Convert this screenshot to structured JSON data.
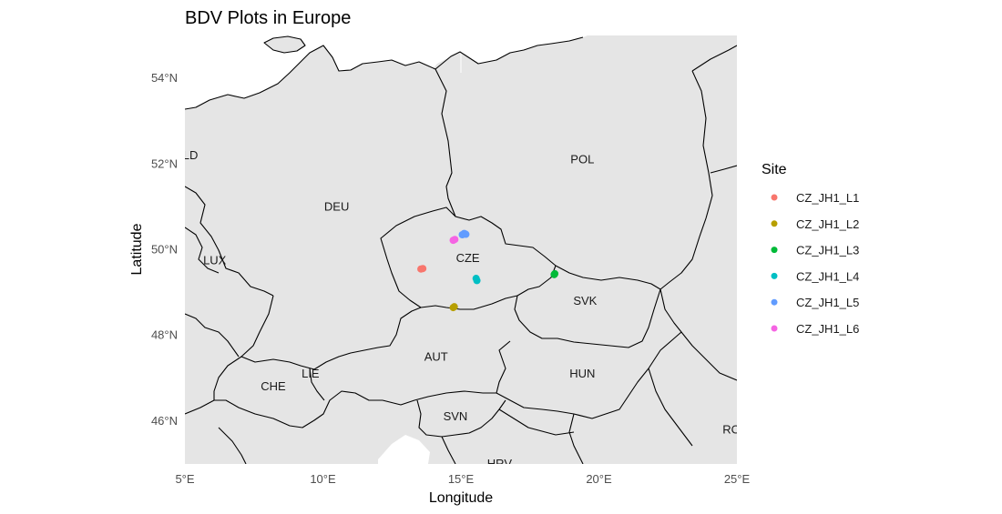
{
  "chart_data": {
    "type": "scatter",
    "title": "BDV Plots in Europe",
    "xlabel": "Longitude",
    "ylabel": "Latitude",
    "xlim": [
      5,
      25
    ],
    "ylim": [
      45,
      55
    ],
    "x_ticks": [
      {
        "value": 5,
        "label": "5°E"
      },
      {
        "value": 10,
        "label": "10°E"
      },
      {
        "value": 15,
        "label": "15°E"
      },
      {
        "value": 20,
        "label": "20°E"
      },
      {
        "value": 25,
        "label": "25°E"
      }
    ],
    "y_ticks": [
      {
        "value": 46,
        "label": "46°N"
      },
      {
        "value": 48,
        "label": "48°N"
      },
      {
        "value": 50,
        "label": "50°N"
      },
      {
        "value": 52,
        "label": "52°N"
      },
      {
        "value": 54,
        "label": "54°N"
      }
    ],
    "legend_title": "Site",
    "legend_position": "right",
    "series": [
      {
        "name": "CZ_JH1_L1",
        "color": "#F8766D",
        "points": [
          {
            "lon": 13.55,
            "lat": 49.55
          },
          {
            "lon": 13.62,
            "lat": 49.56
          }
        ]
      },
      {
        "name": "CZ_JH1_L2",
        "color": "#B79F00",
        "points": [
          {
            "lon": 14.72,
            "lat": 48.65
          },
          {
            "lon": 14.76,
            "lat": 48.67
          }
        ]
      },
      {
        "name": "CZ_JH1_L3",
        "color": "#00BA38",
        "points": [
          {
            "lon": 18.38,
            "lat": 49.42
          },
          {
            "lon": 18.4,
            "lat": 49.44
          }
        ]
      },
      {
        "name": "CZ_JH1_L4",
        "color": "#00BFC4",
        "points": [
          {
            "lon": 15.55,
            "lat": 49.33
          },
          {
            "lon": 15.58,
            "lat": 49.28
          }
        ]
      },
      {
        "name": "CZ_JH1_L5",
        "color": "#619CFF",
        "points": [
          {
            "lon": 15.05,
            "lat": 50.35
          },
          {
            "lon": 15.12,
            "lat": 50.38
          },
          {
            "lon": 15.18,
            "lat": 50.36
          }
        ]
      },
      {
        "name": "CZ_JH1_L6",
        "color": "#F564E3",
        "points": [
          {
            "lon": 14.72,
            "lat": 50.22
          },
          {
            "lon": 14.78,
            "lat": 50.24
          }
        ]
      }
    ],
    "country_labels": [
      {
        "text": "DEU",
        "lon": 10.5,
        "lat": 51.0
      },
      {
        "text": "POL",
        "lon": 19.4,
        "lat": 52.1
      },
      {
        "text": "CZE",
        "lon": 15.25,
        "lat": 49.8
      },
      {
        "text": "SVK",
        "lon": 19.5,
        "lat": 48.8
      },
      {
        "text": "AUT",
        "lon": 14.1,
        "lat": 47.5
      },
      {
        "text": "HUN",
        "lon": 19.4,
        "lat": 47.1
      },
      {
        "text": "CHE",
        "lon": 8.2,
        "lat": 46.8
      },
      {
        "text": "LIE",
        "lon": 9.55,
        "lat": 47.1
      },
      {
        "text": "LUX",
        "lon": 6.08,
        "lat": 49.75
      },
      {
        "text": "SVN",
        "lon": 14.8,
        "lat": 46.1
      },
      {
        "text": "HRV",
        "lon": 16.4,
        "lat": 45.0
      },
      {
        "text": "LD",
        "lon": 5.2,
        "lat": 52.2
      },
      {
        "text": "RO",
        "lon": 24.8,
        "lat": 45.8
      }
    ]
  }
}
